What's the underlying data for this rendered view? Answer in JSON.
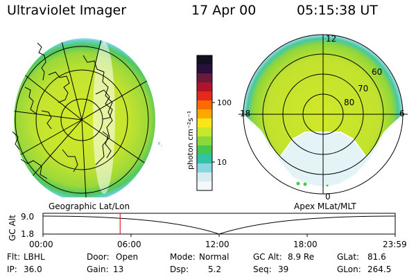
{
  "header": {
    "title": "Ultraviolet Imager",
    "date": "17 Apr 00",
    "time": "05:15:38 UT"
  },
  "colorbar": {
    "unit_label": "photon cm⁻²s⁻¹",
    "tick_labels": [
      "100",
      "10"
    ],
    "colors": [
      "#111122",
      "#2a0f3c",
      "#6a1a3a",
      "#b0132a",
      "#e42a1a",
      "#ff6a00",
      "#ffa800",
      "#f8e81a",
      "#c8e82a",
      "#8ad83a",
      "#46c850",
      "#32c2a8",
      "#8ad6e0",
      "#d6ecf0",
      "#f4f8fa"
    ]
  },
  "polar_plot": {
    "mlat_labels": [
      "60",
      "70",
      "80"
    ],
    "mlt_labels": {
      "top": "12",
      "left": "18",
      "right": "6",
      "bottom": "0"
    }
  },
  "timeline": {
    "left_label": "Geographic Lat/Lon",
    "right_label": "Apex MLat/MLT",
    "y_axis_title": "GC Alt",
    "y_ticks": [
      "9.0",
      "1.8"
    ],
    "x_ticks": [
      "00:00",
      "06:00",
      "12:00",
      "18:00",
      "23:59"
    ],
    "current_time_fraction": 0.219
  },
  "info": {
    "filter": {
      "label": "Flt:",
      "value": "LBHL"
    },
    "ip": {
      "label": "IP:",
      "value": "36.0"
    },
    "door": {
      "label": "Door:",
      "value": "Open"
    },
    "gain": {
      "label": "Gain:",
      "value": "13"
    },
    "mode": {
      "label": "Mode:",
      "value": "Normal"
    },
    "dsp": {
      "label": "Dsp:",
      "value": "5.2"
    },
    "gc_alt": {
      "label": "GC Alt:",
      "value": "8.9 Re"
    },
    "seq": {
      "label": "Seq:",
      "value": "39"
    },
    "glat": {
      "label": "GLat:",
      "value": "81.6"
    },
    "glon": {
      "label": "GLon:",
      "value": "264.5"
    }
  }
}
